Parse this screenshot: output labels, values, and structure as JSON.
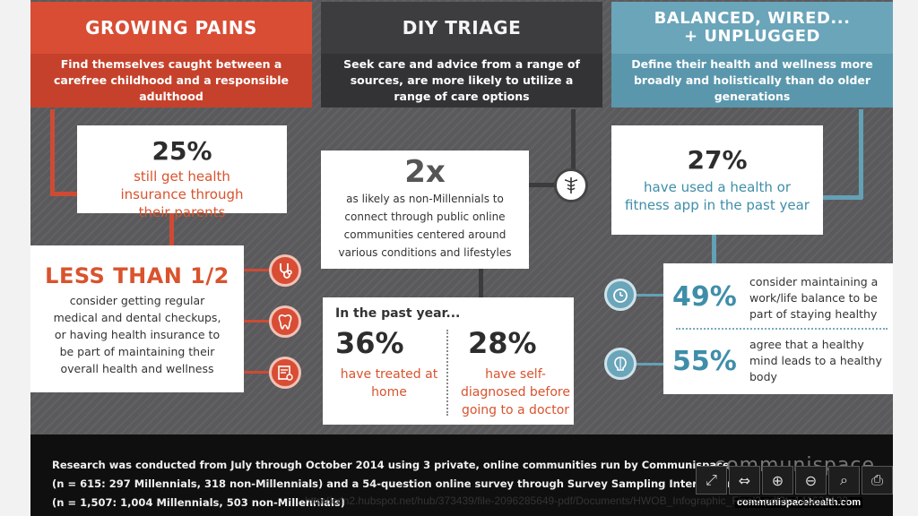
{
  "columns": [
    {
      "title": "Growing Pains",
      "desc": "Find themselves caught between a carefree childhood and a responsible adulthood"
    },
    {
      "title": "DIY Triage",
      "desc": "Seek care and advice from a range of sources, are more likely to utilize a range of care options"
    },
    {
      "title": "Balanced, Wired...\n+ Unplugged",
      "desc": "Define their health and wellness more broadly and holistically than do older generations"
    }
  ],
  "stat_25": {
    "value": "25%",
    "text": "still get health insurance through their parents"
  },
  "stat_half": {
    "value": "LESS THAN 1/2",
    "text": "consider getting regular medical and dental checkups, or having health insurance to be part of maintaining their overall health and wellness"
  },
  "stat_2x": {
    "value": "2x",
    "text": "as likely as non-Millennials to connect through public online communities centered around various conditions and lifestyles"
  },
  "past_year": {
    "heading": "In the past year...",
    "v1": "36%",
    "t1": "have treated at home",
    "v2": "28%",
    "t2": "have self-diagnosed before going to a doctor"
  },
  "stat_27": {
    "value": "27%",
    "text": "have used a health or fitness app in the past year"
  },
  "stat_49": {
    "value": "49%",
    "text": "consider maintaining a work/life balance to be part of staying healthy"
  },
  "stat_55": {
    "value": "55%",
    "text": "agree that a healthy mind leads to a healthy body"
  },
  "footer": {
    "line1": "Research was conducted from July through October 2014 using 3 private, online communities run by Communispace",
    "line2": "(n = 615: 297 Millennials,  318 non-Millennials) and a 54-question online survey through Survey Sampling International",
    "line3": "(n = 1,507: 1,004 Millennials, 503 non-Millennials)",
    "brand": "communispace"
  },
  "viewer": {
    "url": "http://cdn2.hubspot.net/hub/373439/file-2096285649-pdf/Documents/HWOB_Infographic_Final3.pdf?t=141632133",
    "source": "communispacehealth.com"
  },
  "colors": {
    "red": "#d84d34",
    "dark": "#3d3d3f",
    "blue": "#6aa5ba",
    "orange_text": "#d9532d",
    "teal_text": "#3f8ea9"
  },
  "icons": [
    "stethoscope-icon",
    "tooth-icon",
    "certificate-icon",
    "caduceus-icon",
    "clock-icon",
    "brain-icon"
  ]
}
